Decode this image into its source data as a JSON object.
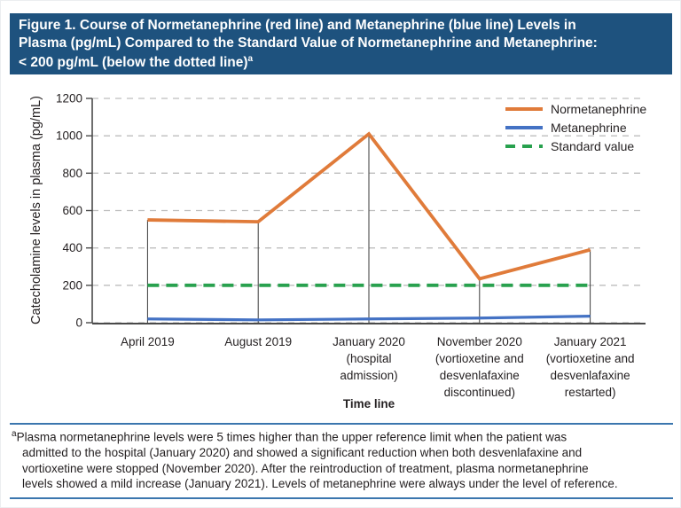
{
  "title": {
    "text": "Figure 1. Course of Normetanephrine (red line) and Metanephrine (blue line) Levels in\nPlasma (pg/mL) Compared to the Standard Value of Normetanephrine and Metanephrine:\n< 200 pg/mL (below the dotted line)",
    "superscript": "a"
  },
  "colors": {
    "title_bar_bg": "#1e527e",
    "title_text": "#ffffff",
    "normetanephrine": "#e07b3a",
    "metanephrine": "#4472c4",
    "standard_value": "#28a14e",
    "gridline": "#bdbdbd",
    "axis": "#4a4a4a",
    "dropline": "#3a3a3a",
    "separator": "#3b76ae",
    "text": "#231f20"
  },
  "chart_data": {
    "type": "line",
    "categories": [
      "April 2019",
      "August 2019",
      "January 2020\n(hospital\nadmission)",
      "November 2020\n(vortioxetine and\ndesvenlafaxine\ndiscontinued)",
      "January 2021\n(vortioxetine and\ndesvenlafaxine\nrestarted)"
    ],
    "series": [
      {
        "name": "Normetanephrine",
        "values": [
          550,
          540,
          1010,
          235,
          390
        ],
        "color": "#e07b3a",
        "style": "solid"
      },
      {
        "name": "Metanephrine",
        "values": [
          20,
          15,
          20,
          25,
          35
        ],
        "color": "#4472c4",
        "style": "solid"
      },
      {
        "name": "Standard value",
        "values": [
          200,
          200,
          200,
          200,
          200
        ],
        "color": "#28a14e",
        "style": "dashed"
      }
    ],
    "ylabel": "Catecholamine levels in plasma (pg/mL)",
    "xlabel": "Time line",
    "ylim": [
      0,
      1200
    ],
    "yticks": [
      0,
      200,
      400,
      600,
      800,
      1000,
      1200
    ],
    "grid": "horizontal-dashed",
    "legend_position": "top-right",
    "droplines": true
  },
  "legend": [
    {
      "label": "Normetanephrine"
    },
    {
      "label": "Metanephrine"
    },
    {
      "label": "Standard value"
    }
  ],
  "footnote": {
    "superscript": "a",
    "text": "Plasma normetanephrine levels were 5 times higher than the upper reference limit when the patient was\nadmitted to the hospital (January 2020) and showed a significant reduction when both desvenlafaxine and\nvortioxetine were stopped (November 2020). After the reintroduction of treatment, plasma normetanephrine\nlevels showed a mild increase (January 2021). Levels of metanephrine were always under the level of reference."
  }
}
